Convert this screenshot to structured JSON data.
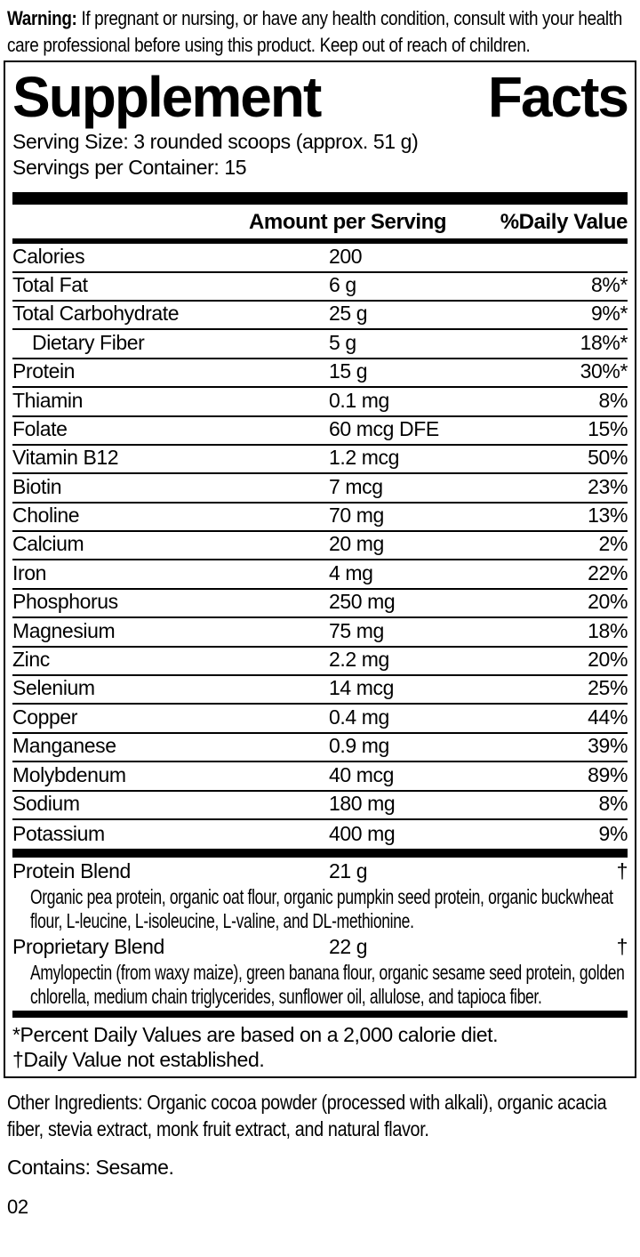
{
  "colors": {
    "ink": "#000000",
    "paper": "#ffffff"
  },
  "warning": {
    "label": "Warning:",
    "text": " If pregnant or nursing, or have any health condition, consult with your health care professional before using this product. Keep out of reach of children."
  },
  "panel": {
    "title": "Supplement Facts",
    "serving_size": "Serving Size: 3 rounded scoops (approx. 51 g)",
    "servings_per_container": "Servings per Container: 15",
    "columns": {
      "amount": "Amount per Serving",
      "daily_value": "%Daily Value"
    },
    "rows": [
      {
        "name": "Calories",
        "amount": "200",
        "dv": ""
      },
      {
        "name": "Total Fat",
        "amount": "6 g",
        "dv": "8%*"
      },
      {
        "name": "Total Carbohydrate",
        "amount": "25 g",
        "dv": "9%*"
      },
      {
        "name": "Dietary Fiber",
        "amount": "5 g",
        "dv": "18%*",
        "indent": true
      },
      {
        "name": "Protein",
        "amount": "15 g",
        "dv": "30%*"
      },
      {
        "name": "Thiamin",
        "amount": "0.1 mg",
        "dv": "8%"
      },
      {
        "name": "Folate",
        "amount": "60 mcg DFE",
        "dv": "15%"
      },
      {
        "name": "Vitamin B12",
        "amount": "1.2 mcg",
        "dv": "50%"
      },
      {
        "name": "Biotin",
        "amount": "7 mcg",
        "dv": "23%"
      },
      {
        "name": "Choline",
        "amount": "70 mg",
        "dv": "13%"
      },
      {
        "name": "Calcium",
        "amount": "20 mg",
        "dv": "2%"
      },
      {
        "name": "Iron",
        "amount": "4 mg",
        "dv": "22%"
      },
      {
        "name": "Phosphorus",
        "amount": "250 mg",
        "dv": "20%"
      },
      {
        "name": "Magnesium",
        "amount": "75 mg",
        "dv": "18%"
      },
      {
        "name": "Zinc",
        "amount": "2.2 mg",
        "dv": "20%"
      },
      {
        "name": "Selenium",
        "amount": "14 mcg",
        "dv": "25%"
      },
      {
        "name": "Copper",
        "amount": "0.4 mg",
        "dv": "44%"
      },
      {
        "name": "Manganese",
        "amount": "0.9 mg",
        "dv": "39%"
      },
      {
        "name": "Molybdenum",
        "amount": "40 mcg",
        "dv": "89%"
      },
      {
        "name": "Sodium",
        "amount": "180 mg",
        "dv": "8%"
      },
      {
        "name": "Potassium",
        "amount": "400 mg",
        "dv": "9%"
      }
    ],
    "blends": [
      {
        "name": "Protein Blend",
        "amount": "21 g",
        "dv": "†",
        "description": "Organic pea protein, organic oat flour, organic pumpkin seed protein, organic buckwheat flour, L-leucine, L-isoleucine, L-valine, and DL-methionine."
      },
      {
        "name": "Proprietary Blend",
        "amount": "22 g",
        "dv": "†",
        "description": "Amylopectin (from waxy maize), green banana flour, organic sesame seed protein, golden chlorella, medium chain triglycerides, sunflower oil, allulose, and tapioca fiber."
      }
    ],
    "footnotes": [
      "*Percent Daily Values are based on a 2,000 calorie diet.",
      "†Daily Value not established."
    ]
  },
  "other_ingredients": "Other Ingredients: Organic cocoa powder (processed with alkali), organic acacia fiber, stevia extract, monk fruit extract, and natural flavor.",
  "contains": "Contains: Sesame.",
  "page_code": "02"
}
